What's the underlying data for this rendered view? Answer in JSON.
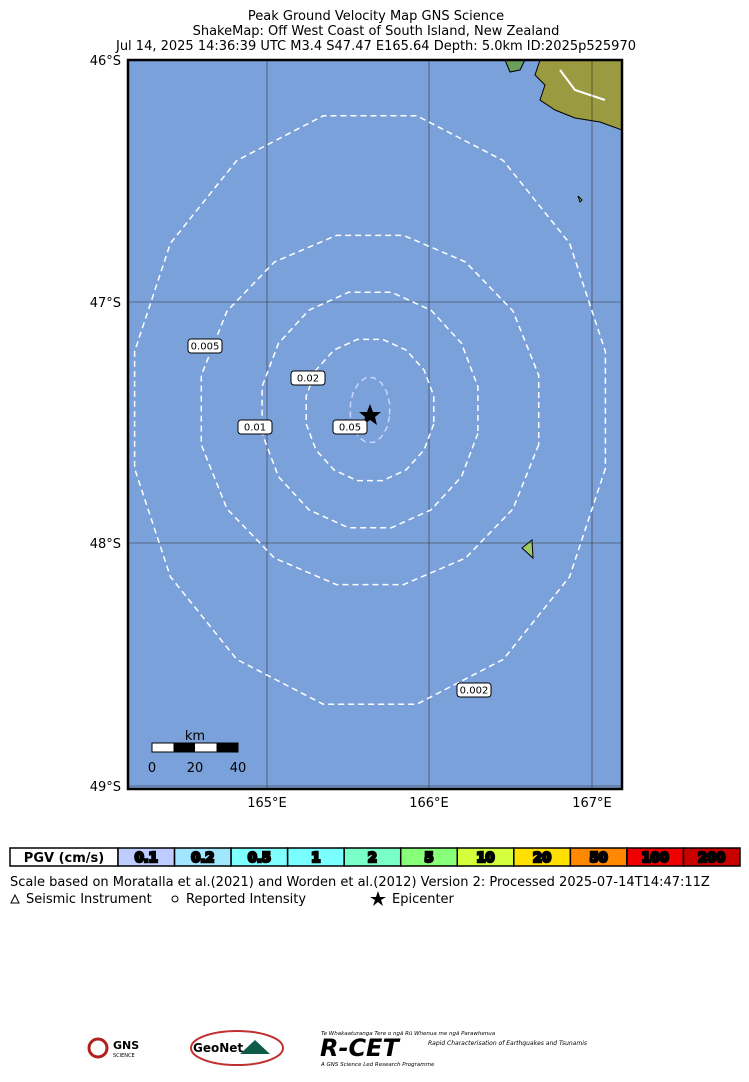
{
  "header": {
    "title_lines": [
      "Peak Ground Velocity Map GNS Science",
      "ShakeMap: Off West Coast of South Island, New Zealand",
      "Jul 14, 2025 14:36:39 UTC M3.4 S47.47 E165.64 Depth: 5.0km ID:2025p525970"
    ]
  },
  "map": {
    "lat_labels": [
      "46°S",
      "47°S",
      "48°S",
      "49°S"
    ],
    "lon_labels": [
      "165°E",
      "166°E",
      "167°E"
    ],
    "contour_labels": [
      "0.005",
      "0.02",
      "0.01",
      "0.05",
      "0.002"
    ],
    "scale_bar": {
      "unit": "km",
      "labels": [
        "0",
        "20",
        "40"
      ]
    }
  },
  "legend": {
    "title": "PGV (cm/s)",
    "cells": [
      {
        "label": "0.1",
        "color": "#bfccff"
      },
      {
        "label": "0.2",
        "color": "#a0e6ff"
      },
      {
        "label": "0.5",
        "color": "#80ffff"
      },
      {
        "label": "1",
        "color": "#7affff"
      },
      {
        "label": "2",
        "color": "#7affc8"
      },
      {
        "label": "5",
        "color": "#88ff78"
      },
      {
        "label": "10",
        "color": "#d4ff3c"
      },
      {
        "label": "20",
        "color": "#ffe000"
      },
      {
        "label": "50",
        "color": "#ff8800"
      },
      {
        "label": "100",
        "color": "#ee0000"
      },
      {
        "label": "200",
        "color": "#c80000"
      }
    ]
  },
  "footer": {
    "note": "Scale based on Moratalla et al.(2021) and Worden et al.(2012)   Version 2: Processed 2025-07-14T14:47:11Z",
    "symbols": [
      "Seismic Instrument",
      "Reported Intensity",
      "Epicenter"
    ]
  },
  "logos": {
    "gns": "GNS",
    "gns_sub": "SCIENCE",
    "geonet": "GeoNet",
    "rcet": "R-CET",
    "rcet_maori": "Te Whakaaturanga Tere o ngā Rū Whenua me ngā Parawhenua",
    "rcet_sub": "Rapid Characterisation of Earthquakes and Tsunamis",
    "rcet_foot": "A GNS Science Led Research Programme"
  }
}
